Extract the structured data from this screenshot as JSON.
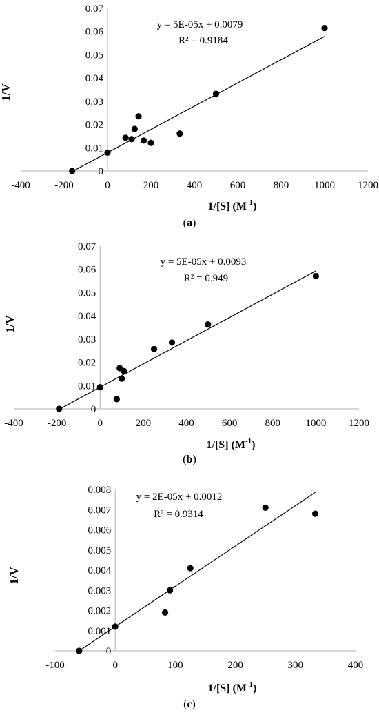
{
  "chart_data": [
    {
      "type": "scatter",
      "caption": "(a)",
      "caption_letter": "a",
      "xlabel": "1/[S] (M",
      "xlabel_sup": "-1",
      "ylabel": "1/V",
      "equation": "y = 5E-05x + 0.0079",
      "r2": "R² = 0.9184",
      "xlim": [
        -400,
        1200
      ],
      "ylim": [
        0,
        0.07
      ],
      "xticks": [
        -400,
        -200,
        0,
        200,
        400,
        600,
        800,
        1000,
        1200
      ],
      "yticks": [
        0,
        0.01,
        0.02,
        0.03,
        0.04,
        0.05,
        0.06,
        0.07
      ],
      "xtick_labels": [
        "-400",
        "-200",
        "0",
        "200",
        "400",
        "600",
        "800",
        "1000",
        "1200"
      ],
      "ytick_labels": [
        "0",
        "0.01",
        "0.02",
        "0.03",
        "0.04",
        "0.05",
        "0.06",
        "0.07"
      ],
      "trendline": {
        "slope": 5e-05,
        "intercept": 0.0079,
        "x_start": -163,
        "x_end": 1000
      },
      "points": [
        {
          "x": -163,
          "y": 0
        },
        {
          "x": 0,
          "y": 0.0079
        },
        {
          "x": 83,
          "y": 0.0143
        },
        {
          "x": 111,
          "y": 0.0137
        },
        {
          "x": 125,
          "y": 0.0181
        },
        {
          "x": 143,
          "y": 0.0235
        },
        {
          "x": 167,
          "y": 0.0131
        },
        {
          "x": 200,
          "y": 0.0121
        },
        {
          "x": 333,
          "y": 0.0161
        },
        {
          "x": 500,
          "y": 0.0332
        },
        {
          "x": 1000,
          "y": 0.0615
        }
      ]
    },
    {
      "type": "scatter",
      "caption": "(b)",
      "caption_letter": "b",
      "xlabel": "1/[S] (M",
      "xlabel_sup": "-1",
      "ylabel": "1/V",
      "equation": "y = 5E-05x + 0.0093",
      "r2": "R² = 0.949",
      "xlim": [
        -400,
        1200
      ],
      "ylim": [
        0,
        0.07
      ],
      "xticks": [
        -400,
        -200,
        0,
        200,
        400,
        600,
        800,
        1000,
        1200
      ],
      "yticks": [
        0,
        0.01,
        0.02,
        0.03,
        0.04,
        0.05,
        0.06,
        0.07
      ],
      "xtick_labels": [
        "-400",
        "-200",
        "0",
        "200",
        "400",
        "600",
        "800",
        "1000",
        "1200"
      ],
      "ytick_labels": [
        "0",
        "0.01",
        "0.02",
        "0.03",
        "0.04",
        "0.05",
        "0.06",
        "0.07"
      ],
      "trendline": {
        "slope": 5e-05,
        "intercept": 0.0093,
        "x_start": -190,
        "x_end": 1000
      },
      "points": [
        {
          "x": -190,
          "y": 0
        },
        {
          "x": 0,
          "y": 0.0093
        },
        {
          "x": 77,
          "y": 0.0042
        },
        {
          "x": 91,
          "y": 0.0175
        },
        {
          "x": 100,
          "y": 0.013
        },
        {
          "x": 111,
          "y": 0.0162
        },
        {
          "x": 250,
          "y": 0.0257
        },
        {
          "x": 333,
          "y": 0.0285
        },
        {
          "x": 500,
          "y": 0.0363
        },
        {
          "x": 1000,
          "y": 0.0571
        }
      ]
    },
    {
      "type": "scatter",
      "caption": "(c)",
      "caption_letter": "c",
      "xlabel": "1/[S] (M",
      "xlabel_sup": "-1",
      "ylabel": "1/V",
      "equation": "y = 2E-05x + 0.0012",
      "r2": "R² = 0.9314",
      "xlim": [
        -100,
        400
      ],
      "ylim": [
        0,
        0.008
      ],
      "xticks": [
        -100,
        0,
        100,
        200,
        300,
        400
      ],
      "yticks": [
        0,
        0.001,
        0.002,
        0.003,
        0.004,
        0.005,
        0.006,
        0.007,
        0.008
      ],
      "xtick_labels": [
        "-100",
        "0",
        "100",
        "200",
        "300",
        "400"
      ],
      "ytick_labels": [
        "0",
        "0.001",
        "0.002",
        "0.003",
        "0.004",
        "0.005",
        "0.006",
        "0.007",
        "0.008"
      ],
      "trendline": {
        "slope": 2e-05,
        "intercept": 0.0012,
        "x_start": -60,
        "x_end": 333
      },
      "points": [
        {
          "x": -60,
          "y": 0
        },
        {
          "x": 0,
          "y": 0.0012
        },
        {
          "x": 83,
          "y": 0.0019
        },
        {
          "x": 91,
          "y": 0.003
        },
        {
          "x": 125,
          "y": 0.0041
        },
        {
          "x": 250,
          "y": 0.0071
        },
        {
          "x": 333,
          "y": 0.0068
        }
      ]
    }
  ]
}
